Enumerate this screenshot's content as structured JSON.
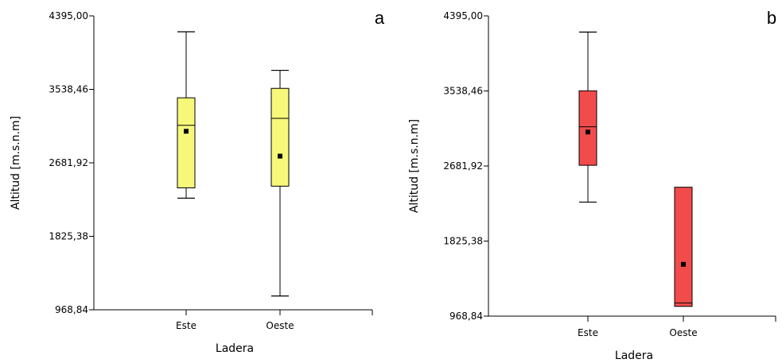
{
  "chart_data": [
    {
      "type": "boxplot",
      "panel_label": "a",
      "xlabel": "Ladera",
      "ylabel": "Altitud [m.s.n.m]",
      "yticks": [
        "4395,00",
        "3538,46",
        "2681,92",
        "1825,38",
        "968,84"
      ],
      "ylim": [
        968.84,
        4395.0
      ],
      "categories": [
        "Este",
        "Oeste"
      ],
      "box_color": "#f7f77a",
      "boxes": [
        {
          "category": "Este",
          "whisker_low": 2270,
          "q1": 2390,
          "median": 3120,
          "q3": 3440,
          "whisker_high": 4210,
          "mean": 3050
        },
        {
          "category": "Oeste",
          "whisker_low": 1130,
          "q1": 2410,
          "median": 3200,
          "q3": 3550,
          "whisker_high": 3760,
          "mean": 2760
        }
      ]
    },
    {
      "type": "boxplot",
      "panel_label": "b",
      "xlabel": "Ladera",
      "ylabel": "Altitud [m.s.n.m]",
      "yticks": [
        "4395,00",
        "3538,46",
        "2681,92",
        "1825,38",
        "968,84"
      ],
      "ylim": [
        968.84,
        4395.0
      ],
      "categories": [
        "Este",
        "Oeste"
      ],
      "box_color": "#f24b4b",
      "boxes": [
        {
          "category": "Este",
          "whisker_low": 2270,
          "q1": 2690,
          "median": 3130,
          "q3": 3540,
          "whisker_high": 4210,
          "mean": 3070
        },
        {
          "category": "Oeste",
          "whisker_low": 1080,
          "q1": 1080,
          "median": 1120,
          "q3": 2440,
          "whisker_high": 2440,
          "mean": 1560
        }
      ]
    }
  ]
}
